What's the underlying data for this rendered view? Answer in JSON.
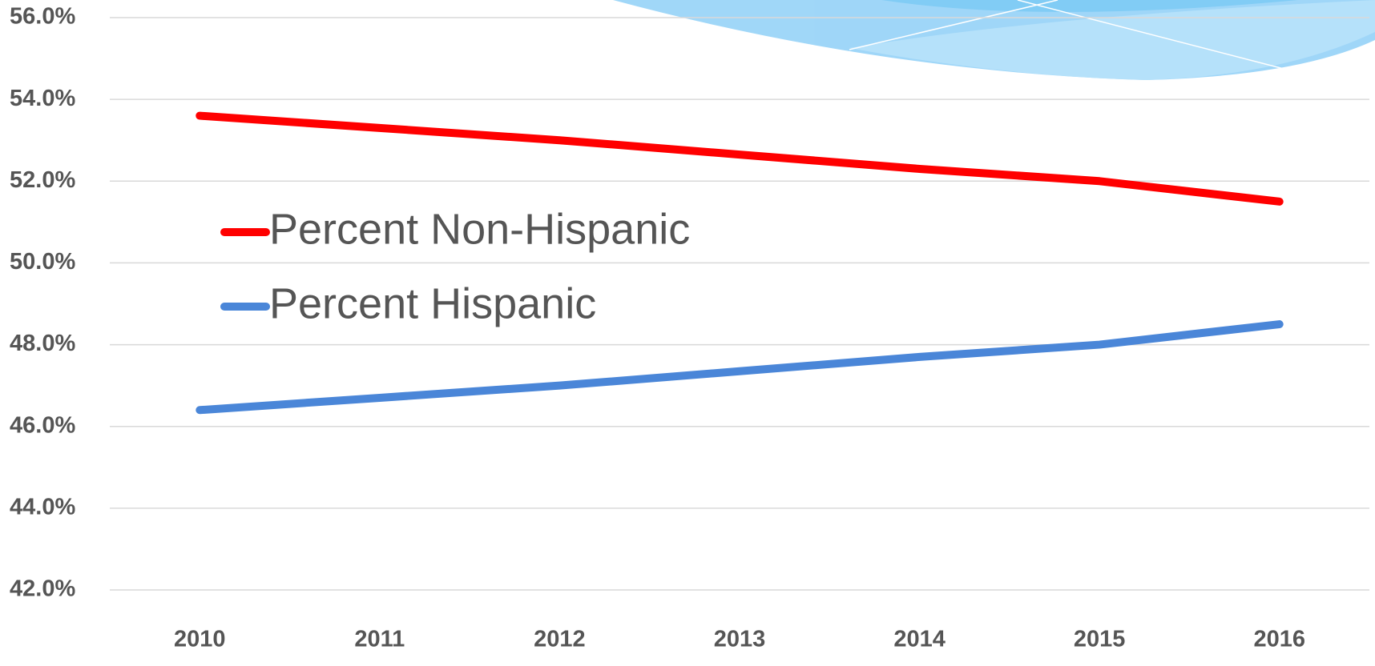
{
  "chart_data": {
    "type": "line",
    "categories": [
      "2010",
      "2011",
      "2012",
      "2013",
      "2014",
      "2015",
      "2016"
    ],
    "series": [
      {
        "name": "Percent Non-Hispanic",
        "color": "#ff0000",
        "values": [
          53.6,
          53.3,
          53.0,
          52.65,
          52.3,
          52.0,
          51.5
        ]
      },
      {
        "name": "Percent Hispanic",
        "color": "#4a86d8",
        "values": [
          46.4,
          46.7,
          47.0,
          47.35,
          47.7,
          48.0,
          48.5
        ]
      }
    ],
    "ylim": [
      42,
      56
    ],
    "yticks": [
      {
        "value": 42,
        "label": "42.0%"
      },
      {
        "value": 44,
        "label": "44.0%"
      },
      {
        "value": 46,
        "label": "46.0%"
      },
      {
        "value": 48,
        "label": "48.0%"
      },
      {
        "value": 50,
        "label": "50.0%"
      },
      {
        "value": 52,
        "label": "52.0%"
      },
      {
        "value": 54,
        "label": "54.0%"
      },
      {
        "value": 56,
        "label": "56.0%"
      }
    ],
    "grid": true,
    "legend": "upper-left"
  }
}
